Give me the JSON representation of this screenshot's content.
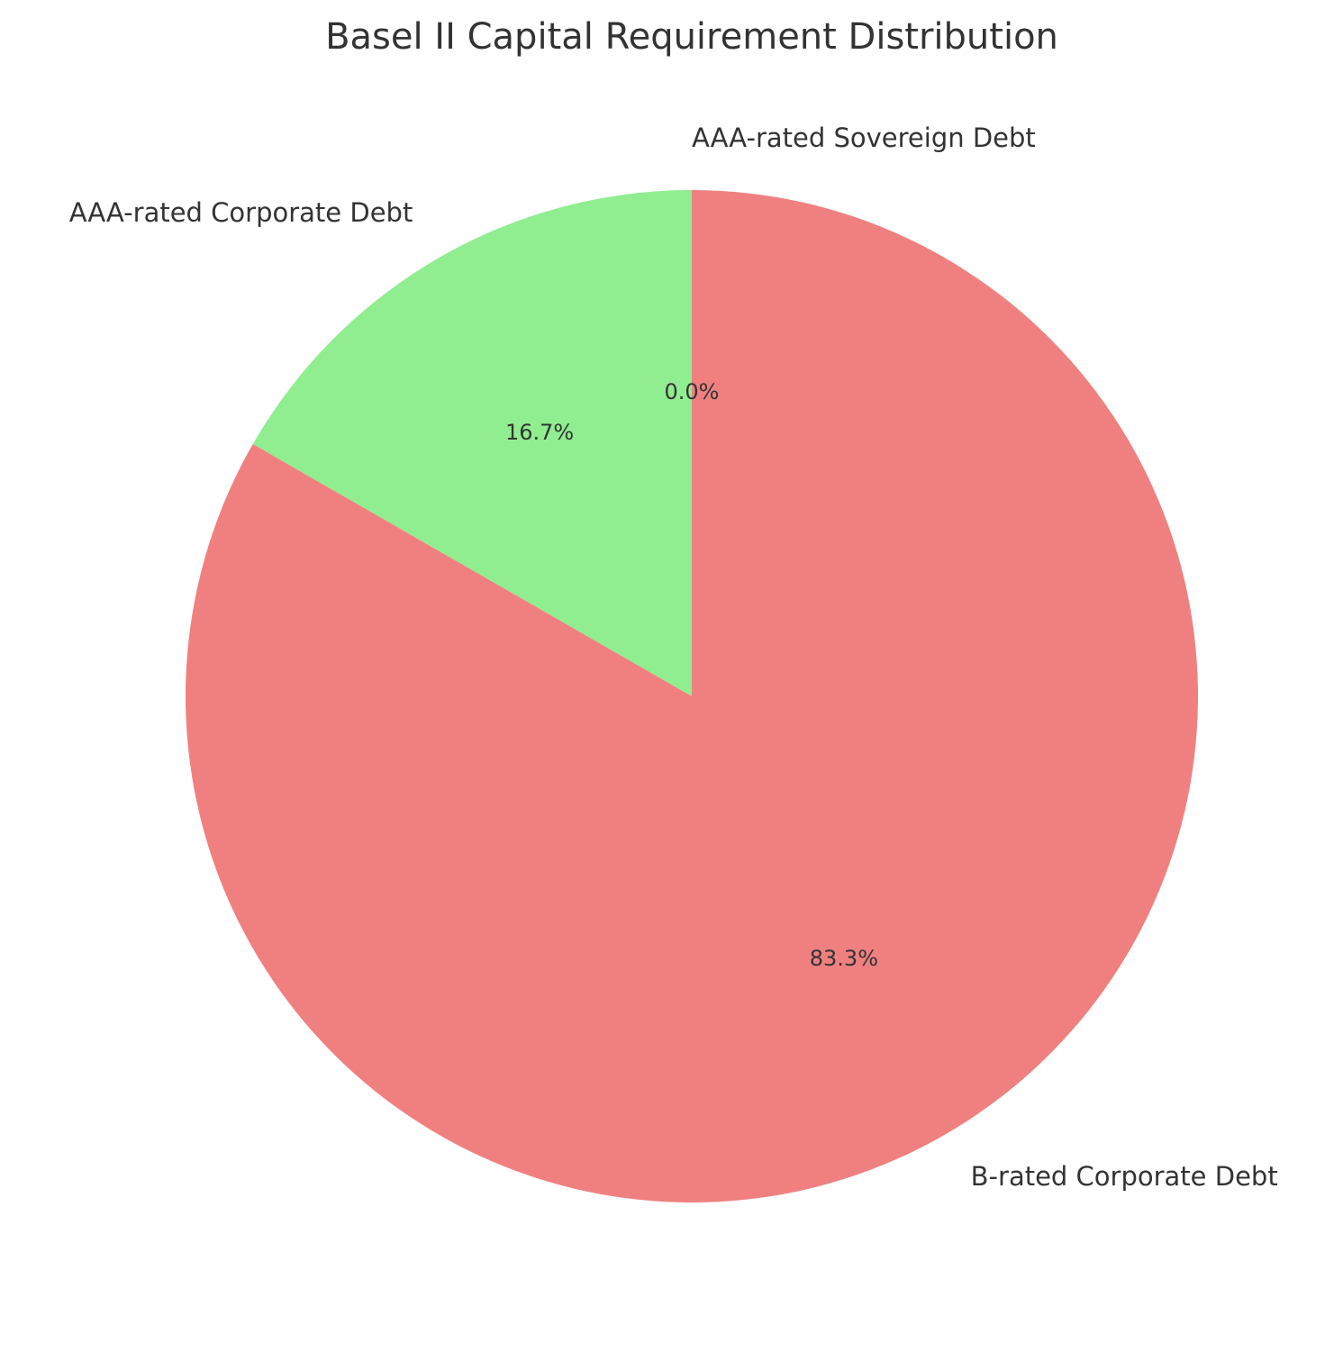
{
  "chart_data": {
    "type": "pie",
    "title": "Basel II Capital Requirement Distribution",
    "start_angle_deg": 90,
    "direction": "counterclockwise",
    "slices": [
      {
        "label": "AAA-rated Sovereign Debt",
        "value": 0.0,
        "percent_label": "0.0%",
        "color": "#add8e6"
      },
      {
        "label": "AAA-rated Corporate Debt",
        "value": 16.7,
        "percent_label": "16.7%",
        "color": "#90ee90"
      },
      {
        "label": "B-rated Corporate Debt",
        "value": 83.3,
        "percent_label": "83.3%",
        "color": "#f08080"
      }
    ]
  }
}
